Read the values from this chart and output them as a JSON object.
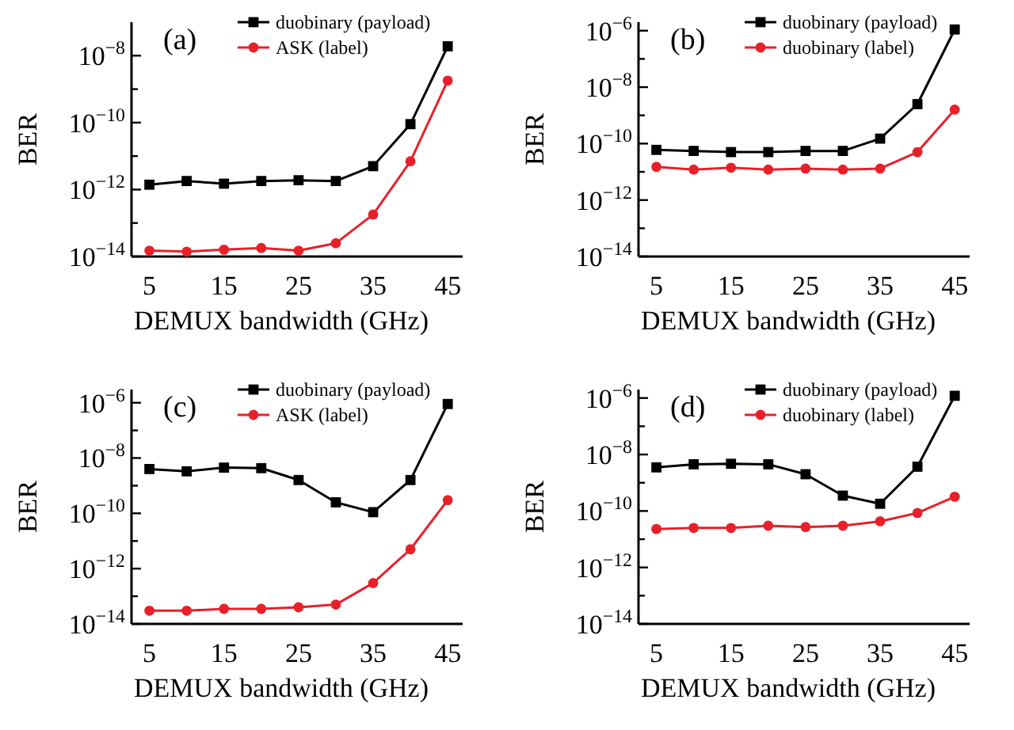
{
  "chart_data": [
    {
      "type": "line",
      "annotations": [
        "(a)"
      ],
      "xlabel": "DEMUX bandwidth (GHz)",
      "ylabel": "BER",
      "log": "y",
      "legend": "top right",
      "x": [
        5,
        10,
        15,
        20,
        25,
        30,
        35,
        40,
        45
      ],
      "xlim": [
        2.6,
        47
      ],
      "xticks": [
        5,
        15,
        25,
        35,
        45
      ],
      "ylim": [
        1e-14,
        1e-07
      ],
      "yticks": [
        {
          "value": 1e-14,
          "label": "10$^{−14}$"
        },
        {
          "value": 1e-13,
          "label": null
        },
        {
          "value": 1e-12,
          "label": "10$^{−12}$"
        },
        {
          "value": 1e-11,
          "label": null
        },
        {
          "value": 1e-10,
          "label": "10$^{−10}$"
        },
        {
          "value": 1e-09,
          "label": null
        },
        {
          "value": 1e-08,
          "label": "10$^{−8}$"
        }
      ],
      "series": [
        {
          "name": "duobinary (payload)",
          "color": "#000000",
          "marker": "square",
          "values": [
            1.4e-12,
            1.8e-12,
            1.5e-12,
            1.8e-12,
            1.9e-12,
            1.8e-12,
            5e-12,
            9e-11,
            1.9e-08
          ]
        },
        {
          "name": "ASK (label)",
          "color": "#e8202a",
          "marker": "circle",
          "values": [
            1.5e-14,
            1.4e-14,
            1.6e-14,
            1.8e-14,
            1.5e-14,
            2.5e-14,
            1.8e-13,
            7e-12,
            1.8e-09
          ]
        }
      ]
    },
    {
      "type": "line",
      "annotations": [
        "(b)"
      ],
      "xlabel": "DEMUX bandwidth (GHz)",
      "ylabel": "BER",
      "log": "y",
      "legend": "top right",
      "x": [
        5,
        10,
        15,
        20,
        25,
        30,
        35,
        40,
        45
      ],
      "xlim": [
        2.6,
        47
      ],
      "xticks": [
        5,
        15,
        25,
        35,
        45
      ],
      "ylim": [
        1e-14,
        2e-06
      ],
      "yticks": [
        {
          "value": 1e-14,
          "label": "10$^{−14}$"
        },
        {
          "value": 1e-13,
          "label": null
        },
        {
          "value": 1e-12,
          "label": "10$^{−12}$"
        },
        {
          "value": 1e-11,
          "label": null
        },
        {
          "value": 1e-10,
          "label": "10$^{−10}$"
        },
        {
          "value": 1e-09,
          "label": null
        },
        {
          "value": 1e-08,
          "label": "10$^{−8}$"
        },
        {
          "value": 1e-07,
          "label": null
        },
        {
          "value": 1e-06,
          "label": "10$^{−6}$"
        }
      ],
      "series": [
        {
          "name": "duobinary (payload)",
          "color": "#000000",
          "marker": "square",
          "values": [
            6e-11,
            5.5e-11,
            5e-11,
            5e-11,
            5.5e-11,
            5.5e-11,
            1.5e-10,
            2.5e-09,
            1.1e-06
          ]
        },
        {
          "name": "duobinary (label)",
          "color": "#e8202a",
          "marker": "circle",
          "values": [
            1.5e-11,
            1.2e-11,
            1.4e-11,
            1.2e-11,
            1.3e-11,
            1.2e-11,
            1.3e-11,
            5e-11,
            1.6e-09
          ]
        }
      ]
    },
    {
      "type": "line",
      "annotations": [
        "(c)"
      ],
      "xlabel": "DEMUX bandwidth (GHz)",
      "ylabel": "BER",
      "log": "y",
      "legend": "top right",
      "x": [
        5,
        10,
        15,
        20,
        25,
        30,
        35,
        40,
        45
      ],
      "xlim": [
        2.6,
        47
      ],
      "xticks": [
        5,
        15,
        25,
        35,
        45
      ],
      "ylim": [
        1e-14,
        3e-06
      ],
      "yticks": [
        {
          "value": 1e-14,
          "label": "10$^{−14}$"
        },
        {
          "value": 1e-13,
          "label": null
        },
        {
          "value": 1e-12,
          "label": "10$^{−12}$"
        },
        {
          "value": 1e-11,
          "label": null
        },
        {
          "value": 1e-10,
          "label": "10$^{−10}$"
        },
        {
          "value": 1e-09,
          "label": null
        },
        {
          "value": 1e-08,
          "label": "10$^{−8}$"
        },
        {
          "value": 1e-07,
          "label": null
        },
        {
          "value": 1e-06,
          "label": "10$^{−6}$"
        }
      ],
      "series": [
        {
          "name": "duobinary (payload)",
          "color": "#000000",
          "marker": "square",
          "values": [
            4e-09,
            3.3e-09,
            4.5e-09,
            4.3e-09,
            1.6e-09,
            2.5e-10,
            1.1e-10,
            1.6e-09,
            9e-07
          ]
        },
        {
          "name": "ASK (label)",
          "color": "#e8202a",
          "marker": "circle",
          "values": [
            3e-14,
            3e-14,
            3.5e-14,
            3.5e-14,
            4e-14,
            5e-14,
            3e-13,
            5e-12,
            3e-10
          ]
        }
      ]
    },
    {
      "type": "line",
      "annotations": [
        "(d)"
      ],
      "xlabel": "DEMUX bandwidth (GHz)",
      "ylabel": "BER",
      "log": "y",
      "legend": "top right",
      "x": [
        5,
        10,
        15,
        20,
        25,
        30,
        35,
        40,
        45
      ],
      "xlim": [
        2.6,
        47
      ],
      "xticks": [
        5,
        15,
        25,
        35,
        45
      ],
      "ylim": [
        1e-14,
        2e-06
      ],
      "yticks": [
        {
          "value": 1e-14,
          "label": "10$^{−14}$"
        },
        {
          "value": 1e-13,
          "label": null
        },
        {
          "value": 1e-12,
          "label": "10$^{−12}$"
        },
        {
          "value": 1e-11,
          "label": null
        },
        {
          "value": 1e-10,
          "label": "10$^{−10}$"
        },
        {
          "value": 1e-09,
          "label": null
        },
        {
          "value": 1e-08,
          "label": "10$^{−8}$"
        },
        {
          "value": 1e-07,
          "label": null
        },
        {
          "value": 1e-06,
          "label": "10$^{−6}$"
        }
      ],
      "series": [
        {
          "name": "duobinary (payload)",
          "color": "#000000",
          "marker": "square",
          "values": [
            3.5e-09,
            4.5e-09,
            4.7e-09,
            4.5e-09,
            2e-09,
            3.5e-10,
            1.8e-10,
            3.7e-09,
            1.2e-06
          ]
        },
        {
          "name": "duobinary (label)",
          "color": "#e8202a",
          "marker": "circle",
          "values": [
            2.3e-11,
            2.5e-11,
            2.5e-11,
            3e-11,
            2.7e-11,
            3e-11,
            4.3e-11,
            8.5e-11,
            3.2e-10
          ]
        }
      ]
    }
  ]
}
